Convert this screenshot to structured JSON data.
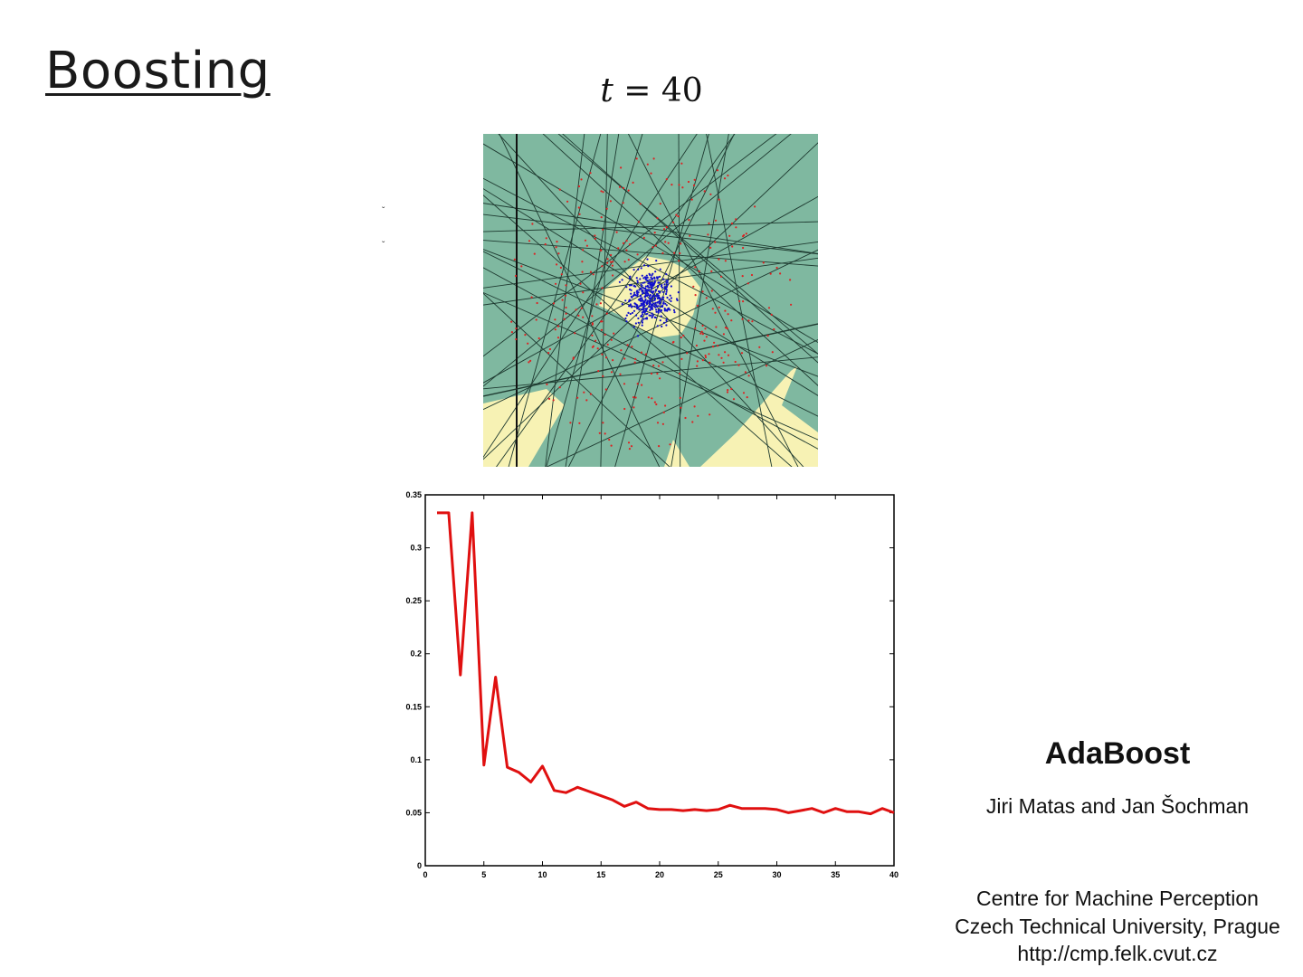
{
  "slide": {
    "title": "Boosting",
    "iteration_label_var": "t",
    "iteration_label_eq": " = ",
    "iteration_label_val": "40"
  },
  "credit": {
    "title": "AdaBoost",
    "authors": "Jiri Matas and Jan Šochman",
    "institution_1": "Centre for Machine Perception",
    "institution_2": "Czech Technical University, Prague",
    "url": "http://cmp.felk.cvut.cz"
  },
  "colors": {
    "region_negative": "#7fb8a0",
    "region_positive": "#f7f2b4",
    "points_positive": "#1010cc",
    "points_negative": "#dd2222",
    "error_line": "#e01010"
  },
  "chart_data": {
    "type": "line",
    "title": "",
    "xlabel": "",
    "ylabel": "",
    "xlim": [
      0,
      40
    ],
    "ylim": [
      0,
      0.35
    ],
    "xticks": [
      0,
      5,
      10,
      15,
      20,
      25,
      30,
      35,
      40
    ],
    "yticks": [
      0,
      0.05,
      0.1,
      0.15,
      0.2,
      0.25,
      0.3,
      0.35
    ],
    "xtick_labels": [
      "0",
      "5",
      "10",
      "15",
      "20",
      "25",
      "30",
      "35",
      "40"
    ],
    "ytick_labels": [
      "0",
      "0.05",
      "0.1",
      "0.15",
      "0.2",
      "0.25",
      "0.3",
      "0.35"
    ],
    "grid": false,
    "series": [
      {
        "x": [
          1,
          2,
          3,
          4,
          5,
          6,
          7,
          8,
          9,
          10,
          11,
          12,
          13,
          14,
          15,
          16,
          17,
          18,
          19,
          20,
          21,
          22,
          23,
          24,
          25,
          26,
          27,
          28,
          29,
          30,
          31,
          32,
          33,
          34,
          35,
          36,
          37,
          38,
          39,
          40
        ],
        "y": [
          0.333,
          0.333,
          0.18,
          0.333,
          0.095,
          0.178,
          0.093,
          0.088,
          0.079,
          0.094,
          0.071,
          0.069,
          0.074,
          0.07,
          0.066,
          0.062,
          0.056,
          0.06,
          0.054,
          0.053,
          0.053,
          0.052,
          0.053,
          0.052,
          0.053,
          0.057,
          0.054,
          0.054,
          0.054,
          0.053,
          0.05,
          0.052,
          0.054,
          0.05,
          0.054,
          0.051,
          0.051,
          0.049,
          0.054,
          0.05
        ]
      }
    ]
  }
}
